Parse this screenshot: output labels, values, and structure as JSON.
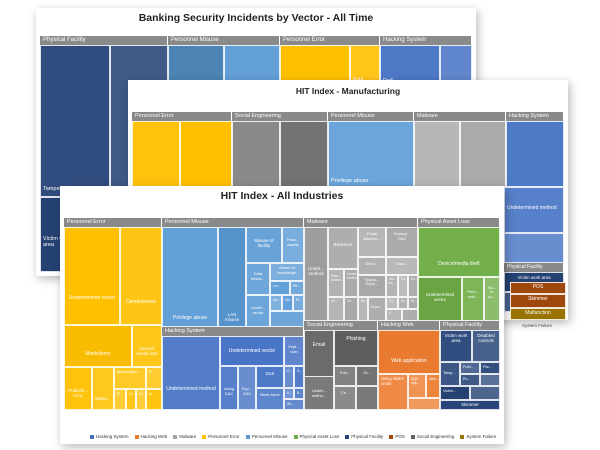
{
  "colors": {
    "Hacking System": "#4472C4",
    "Hacking Web": "#ED7D31",
    "Malware": "#A5A5A5",
    "Personnel Error": "#FFC000",
    "Personnel Misuse": "#5B9BD5",
    "Physical Asset Loss": "#70AD47",
    "Physical Facility": "#264478",
    "POS": "#9E480E",
    "Social Engineering": "#636363",
    "System Failure": "#997300"
  },
  "chart_data": [
    {
      "type": "treemap",
      "title": "Banking Security Incidents by Vector - All Time",
      "groups": [
        {
          "name": "Physical Facility",
          "labels": [
            "Tampering",
            "Disab...",
            "Victim work area",
            "facility"
          ]
        },
        {
          "name": "Personnel Misuse",
          "labels": []
        },
        {
          "name": "Personnel Error",
          "labels": [
            "Publ..."
          ]
        },
        {
          "name": "Hacking System",
          "labels": [
            "DoS"
          ]
        }
      ],
      "visible_labels": [
        "Victim work area",
        "POS",
        "Skimmer",
        "Malfunction",
        "System failure",
        "media",
        "public"
      ]
    },
    {
      "type": "treemap",
      "title": "HIT Index - Manufacturing",
      "groups": [
        {
          "name": "Personnel Error",
          "labels": []
        },
        {
          "name": "Social Engineering",
          "labels": []
        },
        {
          "name": "Personnel Misuse",
          "labels": [
            "Privilege abuse"
          ]
        },
        {
          "name": "Malware",
          "labels": []
        },
        {
          "name": "Hacking System",
          "labels": [
            "Undetermined method",
            "Undetermined vector"
          ]
        },
        {
          "name": "Physical Facility",
          "labels": []
        }
      ]
    },
    {
      "type": "treemap",
      "title": "HIT Index - All Industries",
      "groups": [
        {
          "name": "Personnel Error",
          "labels": [
            "Undetermined vector",
            "Carelessness",
            "Misdelivery",
            "Device/ media loss",
            "Publishi... error",
            "Dispo...",
            "Misconfigur...",
            "Pr...",
            "Gi...",
            "Ot...",
            "In..."
          ]
        },
        {
          "name": "Personnel Misuse",
          "labels": [
            "Privilege abuse",
            "LAN misuse",
            "Misuse of facility",
            "Poss... assets",
            "Abuse of knowledge",
            "Data misha...",
            "Lin...",
            "Undet... vector",
            "Re...",
            "Un...",
            "Ha...",
            "Pl..."
          ]
        },
        {
          "name": "Malware",
          "labels": [
            "Undet... method",
            "Backdoor",
            "Email attachm...",
            "Deployi... C&C",
            "Ran... somw...",
            "Undet... method",
            "Direct...",
            "Scan...",
            "Spywa... Keylo...",
            "Vul... ex...",
            "Ex...",
            "Ro...",
            "Ot...",
            "Ce...",
            "Ro...",
            "Expor...",
            "Ex...",
            "Sc...",
            "W...",
            "K..."
          ]
        },
        {
          "name": "Physical Asset Loss",
          "labels": [
            "Device/media theft",
            "Undetermined vector",
            "Pers... vehi...",
            "Vic... in pu..."
          ]
        },
        {
          "name": "Hacking System",
          "labels": [
            "Undetermined method",
            "Undetermined vector",
            "Using C&C",
            "Exp... C&C",
            "DoS",
            "Brute force",
            "Expl... vuln",
            "G...",
            "S...",
            "U...",
            "B...",
            "Wi..."
          ]
        },
        {
          "name": "Social Engineering",
          "labels": [
            "Email",
            "Phishing",
            "Undet... metho...",
            "End...",
            "Ot...",
            "Ce..."
          ]
        },
        {
          "name": "Hacking Web",
          "labels": [
            "Web application",
            "Using stolen creds",
            "SQL inje...",
            "Web..."
          ]
        },
        {
          "name": "Physical Facility",
          "labels": [
            "Victim work area",
            "Disabled controls",
            "Publ...",
            "Par...",
            "Tamp...",
            "Victim...",
            "Pu...",
            "Skimmer"
          ]
        }
      ],
      "legend": [
        "Hacking System",
        "Hacking Web",
        "Malware",
        "Personnel Error",
        "Personnel Misuse",
        "Physical Asset Loss",
        "Physical Facility",
        "POS",
        "Social Engineering",
        "System Failure"
      ]
    }
  ]
}
